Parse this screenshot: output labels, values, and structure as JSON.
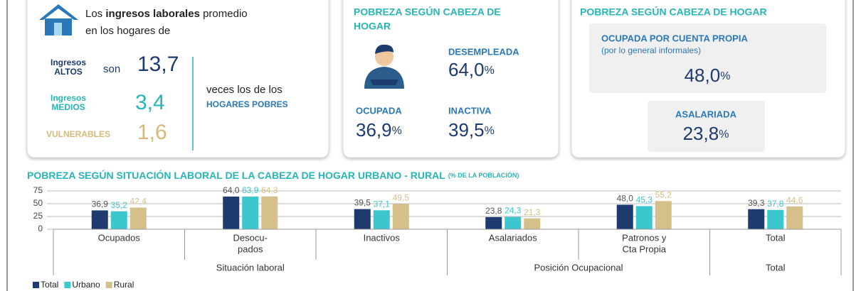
{
  "unit": "%",
  "income": {
    "intro": [
      "Los ",
      "ingresos laborales",
      " promedio"
    ],
    "intro2": "en los hogares de",
    "rows": [
      {
        "label": [
          "Ingresos",
          "ALTOS"
        ],
        "verb": "son",
        "value": "13,7"
      },
      {
        "label": [
          "Ingresos",
          "MEDIOS"
        ],
        "value": "3,4"
      },
      {
        "label": [
          "VULNERABLES"
        ],
        "value": "1,6"
      }
    ],
    "suffix": "veces los de los",
    "suffix2": "HOGARES POBRES"
  },
  "head": {
    "title": [
      "POBREZA SEGÚN CABEZA DE",
      "HOGAR"
    ],
    "items": [
      {
        "name": "DESEMPLEADA",
        "label": "64,0"
      },
      {
        "name": "OCUPADA",
        "label": "36,9"
      },
      {
        "name": "INACTIVA",
        "label": "39,5"
      }
    ]
  },
  "head2": {
    "title": "POBREZA SEGÚN CABEZA DE HOGAR",
    "items": [
      {
        "name": "OCUPADA POR CUENTA PROPIA",
        "note": "(por lo general informales)",
        "label": "48,0"
      },
      {
        "name": "ASALARIADA",
        "label": "23,8"
      }
    ]
  },
  "chart_data": {
    "type": "bar",
    "title": "POBREZA SEGÚN SITUACIÓN LABORAL DE LA CABEZA DE HOGAR URBANO - RURAL",
    "subtitle": "(% DE LA POBLACIÓN)",
    "categories": [
      "Ocupados",
      [
        "Desocu-",
        "pados"
      ],
      "Inactivos",
      "Asalariados",
      [
        "Patronos y",
        "Cta Propia"
      ],
      "Total"
    ],
    "groups": [
      {
        "label": "Situación laboral",
        "span": 3
      },
      {
        "label": "Posición Ocupacional",
        "span": 2
      },
      {
        "label": "Total",
        "span": 1
      }
    ],
    "series": [
      {
        "name": "Total",
        "color": "#1d3b6f",
        "values": [
          36.9,
          64.0,
          39.5,
          23.8,
          48.0,
          39.3
        ],
        "value_labels": [
          "36,9",
          "64,0",
          "39,5",
          "23,8",
          "48,0",
          "39,3"
        ]
      },
      {
        "name": "Urbano",
        "color": "#3cc7cf",
        "values": [
          35.2,
          63.9,
          37.1,
          24.3,
          45.3,
          37.8
        ],
        "value_labels": [
          "35,2",
          "63,9",
          "37,1",
          "24,3",
          "45,3",
          "37,8"
        ]
      },
      {
        "name": "Rural",
        "color": "#d6c08a",
        "values": [
          42.4,
          64.3,
          49.5,
          21.3,
          55.2,
          44.6
        ],
        "value_labels": [
          "42,4",
          "64,3",
          "49,5",
          "21,3",
          "55,2",
          "44,6"
        ]
      }
    ],
    "ylim": [
      0,
      75
    ],
    "yticks": [
      0,
      25,
      50,
      75
    ],
    "grid": true
  }
}
